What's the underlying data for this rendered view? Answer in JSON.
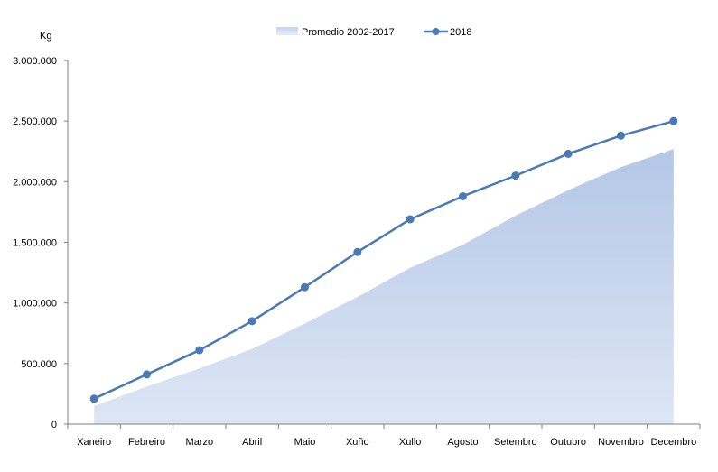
{
  "chart_data": {
    "type": "area",
    "title": "",
    "xlabel": "",
    "ylabel": "Kg",
    "ylim": [
      0,
      3000000
    ],
    "yticks": [
      0,
      500000,
      1000000,
      1500000,
      2000000,
      2500000,
      3000000
    ],
    "ytick_labels": [
      "0",
      "500.000",
      "1.000.000",
      "1.500.000",
      "2.000.000",
      "2.500.000",
      "3.000.000"
    ],
    "grid": false,
    "legend_position": "top-center",
    "categories": [
      "Xaneiro",
      "Febreiro",
      "Marzo",
      "Abril",
      "Maio",
      "Xuño",
      "Xullo",
      "Agosto",
      "Setembro",
      "Outubro",
      "Novembro",
      "Decembro"
    ],
    "series": [
      {
        "name": "Promedio 2002-2017",
        "type": "area",
        "color": "#b4c7e7",
        "values": [
          150000,
          310000,
          460000,
          620000,
          830000,
          1050000,
          1290000,
          1480000,
          1720000,
          1930000,
          2120000,
          2270000
        ]
      },
      {
        "name": "2018",
        "type": "line",
        "color": "#4a7ab5",
        "values": [
          210000,
          410000,
          610000,
          850000,
          1130000,
          1420000,
          1690000,
          1880000,
          2050000,
          2230000,
          2380000,
          2500000
        ]
      }
    ]
  }
}
